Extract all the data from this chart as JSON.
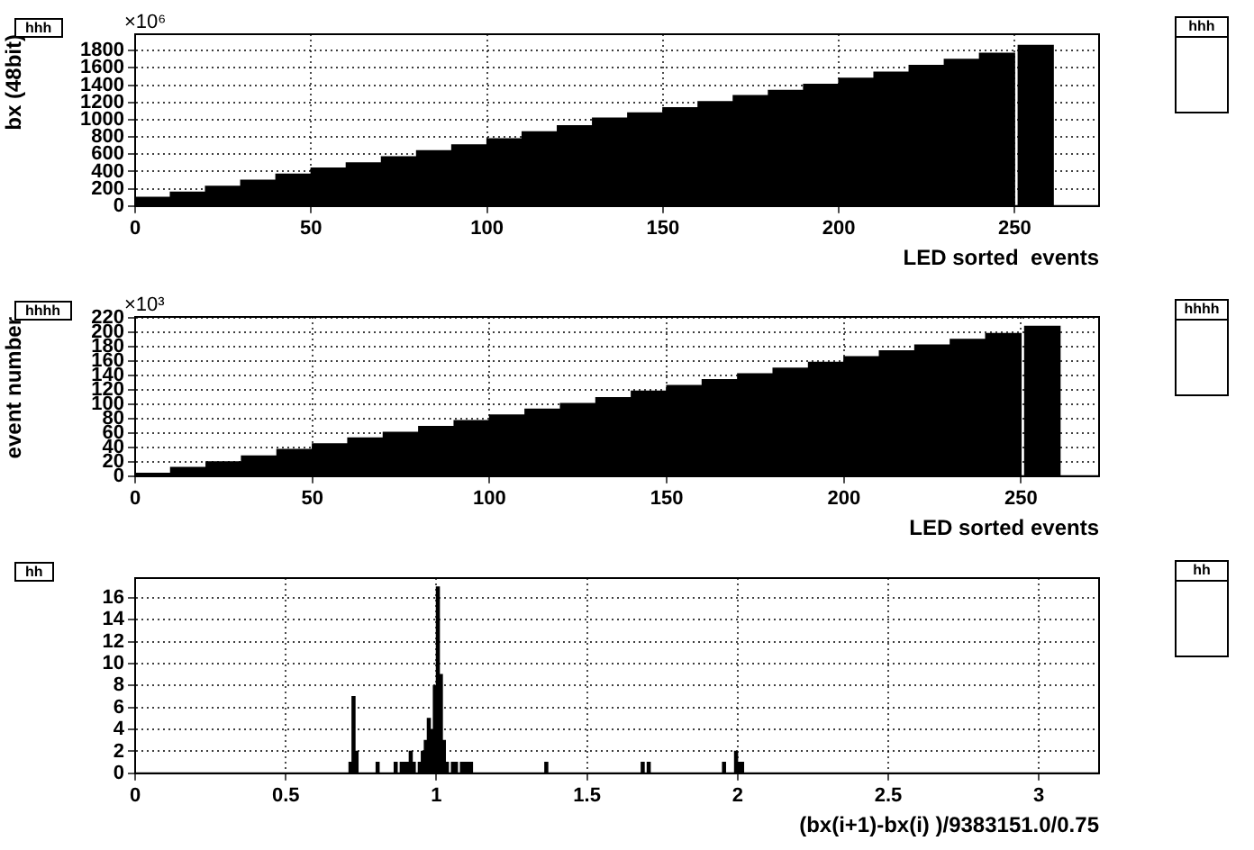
{
  "chart_data": [
    {
      "type": "histogram",
      "title": "hhh",
      "xlabel": "LED sorted  events",
      "ylabel": "bx (48bit)",
      "annotations": [
        "hhh",
        "×10⁶"
      ],
      "color": "#000000",
      "grid": true,
      "bins": [
        0,
        10,
        20,
        30,
        40,
        50,
        60,
        70,
        80,
        90,
        100,
        110,
        120,
        130,
        140,
        150,
        160,
        170,
        180,
        190,
        200,
        210,
        220,
        230,
        240,
        250,
        262
      ],
      "values": [
        100,
        160,
        230,
        300,
        370,
        440,
        500,
        570,
        640,
        710,
        780,
        860,
        930,
        1020,
        1080,
        1140,
        1210,
        1280,
        1340,
        1410,
        1480,
        1550,
        1630,
        1700,
        1770,
        1860
      ],
      "xlim": [
        0,
        274
      ],
      "xticks": [
        0,
        50,
        100,
        150,
        200,
        250
      ],
      "ylim": [
        0,
        1990
      ],
      "yticks": [
        0,
        200,
        400,
        600,
        800,
        1000,
        1200,
        1400,
        1600,
        1800
      ]
    },
    {
      "type": "histogram",
      "title": "hhhh",
      "xlabel": "LED sorted events",
      "ylabel": "event number",
      "annotations": [
        "hhhh",
        "×10³"
      ],
      "color": "#000000",
      "grid": true,
      "bins": [
        0,
        10,
        20,
        30,
        40,
        50,
        60,
        70,
        80,
        90,
        100,
        110,
        120,
        130,
        140,
        150,
        160,
        170,
        180,
        190,
        200,
        210,
        220,
        230,
        240,
        250,
        262
      ],
      "values": [
        4,
        12,
        20,
        28,
        37,
        45,
        53,
        61,
        69,
        77,
        85,
        93,
        101,
        109,
        118,
        126,
        134,
        142,
        150,
        158,
        166,
        174,
        182,
        190,
        198,
        208
      ],
      "xlim": [
        0,
        272
      ],
      "xticks": [
        0,
        50,
        100,
        150,
        200,
        250
      ],
      "ylim": [
        0,
        221
      ],
      "yticks": [
        0,
        20,
        40,
        60,
        80,
        100,
        120,
        140,
        160,
        180,
        200,
        220
      ]
    },
    {
      "type": "histogram",
      "title": "hh",
      "xlabel": "(bx(i+1)-bx(i) )/9383151.0/0.75",
      "annotations": [
        "hh"
      ],
      "color": "#000000",
      "grid": true,
      "bins": [
        0.7,
        0.71,
        0.72,
        0.73,
        0.74,
        0.75,
        0.76,
        0.77,
        0.78,
        0.79,
        0.8,
        0.81,
        0.82,
        0.83,
        0.84,
        0.85,
        0.86,
        0.87,
        0.88,
        0.89,
        0.9,
        0.91,
        0.92,
        0.93,
        0.94,
        0.95,
        0.96,
        0.97,
        0.98,
        0.99,
        1.0,
        1.01,
        1.02,
        1.03,
        1.04,
        1.05,
        1.06,
        1.07,
        1.08,
        1.09,
        1.1,
        1.11,
        1.12,
        1.13,
        1.14,
        1.15,
        1.16,
        1.17,
        1.18,
        1.19,
        1.2,
        1.21,
        1.22,
        1.23,
        1.24,
        1.25,
        1.26,
        1.27,
        1.28,
        1.29,
        1.3,
        1.31,
        1.32,
        1.33,
        1.34,
        1.35,
        1.36,
        1.37,
        1.38,
        1.39,
        1.4,
        1.41,
        1.42,
        1.43,
        1.44,
        1.45,
        1.46,
        1.47,
        1.48,
        1.49,
        1.5,
        1.51,
        1.52,
        1.53,
        1.54,
        1.55,
        1.56,
        1.57,
        1.58,
        1.59,
        1.6,
        1.61,
        1.62,
        1.63,
        1.64,
        1.65,
        1.66,
        1.67,
        1.68,
        1.69,
        1.7,
        1.71,
        1.72,
        1.73,
        1.74,
        1.75,
        1.76,
        1.77,
        1.78,
        1.79,
        1.8,
        1.81,
        1.82,
        1.83,
        1.84,
        1.85,
        1.86,
        1.87,
        1.88,
        1.89,
        1.9,
        1.91,
        1.92,
        1.93,
        1.94,
        1.95,
        1.96,
        1.97,
        1.98,
        1.99,
        2.0,
        2.01,
        2.02
      ],
      "values": [
        0,
        1,
        7,
        2,
        0,
        0,
        0,
        0,
        0,
        0,
        1,
        0,
        0,
        0,
        0,
        0,
        1,
        0,
        1,
        1,
        1,
        2,
        1,
        0,
        1,
        2,
        3,
        5,
        4,
        8,
        17,
        9,
        3,
        1,
        0,
        1,
        1,
        0,
        1,
        1,
        1,
        1,
        0,
        0,
        0,
        0,
        0,
        0,
        0,
        0,
        0,
        0,
        0,
        0,
        0,
        0,
        0,
        0,
        0,
        0,
        0,
        0,
        0,
        0,
        0,
        0,
        1,
        0,
        0,
        0,
        0,
        0,
        0,
        0,
        0,
        0,
        0,
        0,
        0,
        0,
        0,
        0,
        0,
        0,
        0,
        0,
        0,
        0,
        0,
        0,
        0,
        0,
        0,
        0,
        0,
        0,
        0,
        0,
        1,
        0,
        1,
        0,
        0,
        0,
        0,
        0,
        0,
        0,
        0,
        0,
        0,
        0,
        0,
        0,
        0,
        0,
        0,
        0,
        0,
        0,
        0,
        0,
        0,
        0,
        0,
        1,
        0,
        0,
        0,
        2,
        1,
        1
      ],
      "xlim": [
        0,
        3.2
      ],
      "xticks": [
        0,
        0.5,
        1,
        1.5,
        2,
        2.5,
        3
      ],
      "ylim": [
        0,
        17.8
      ],
      "yticks": [
        0,
        2,
        4,
        6,
        8,
        10,
        12,
        14,
        16
      ]
    }
  ]
}
